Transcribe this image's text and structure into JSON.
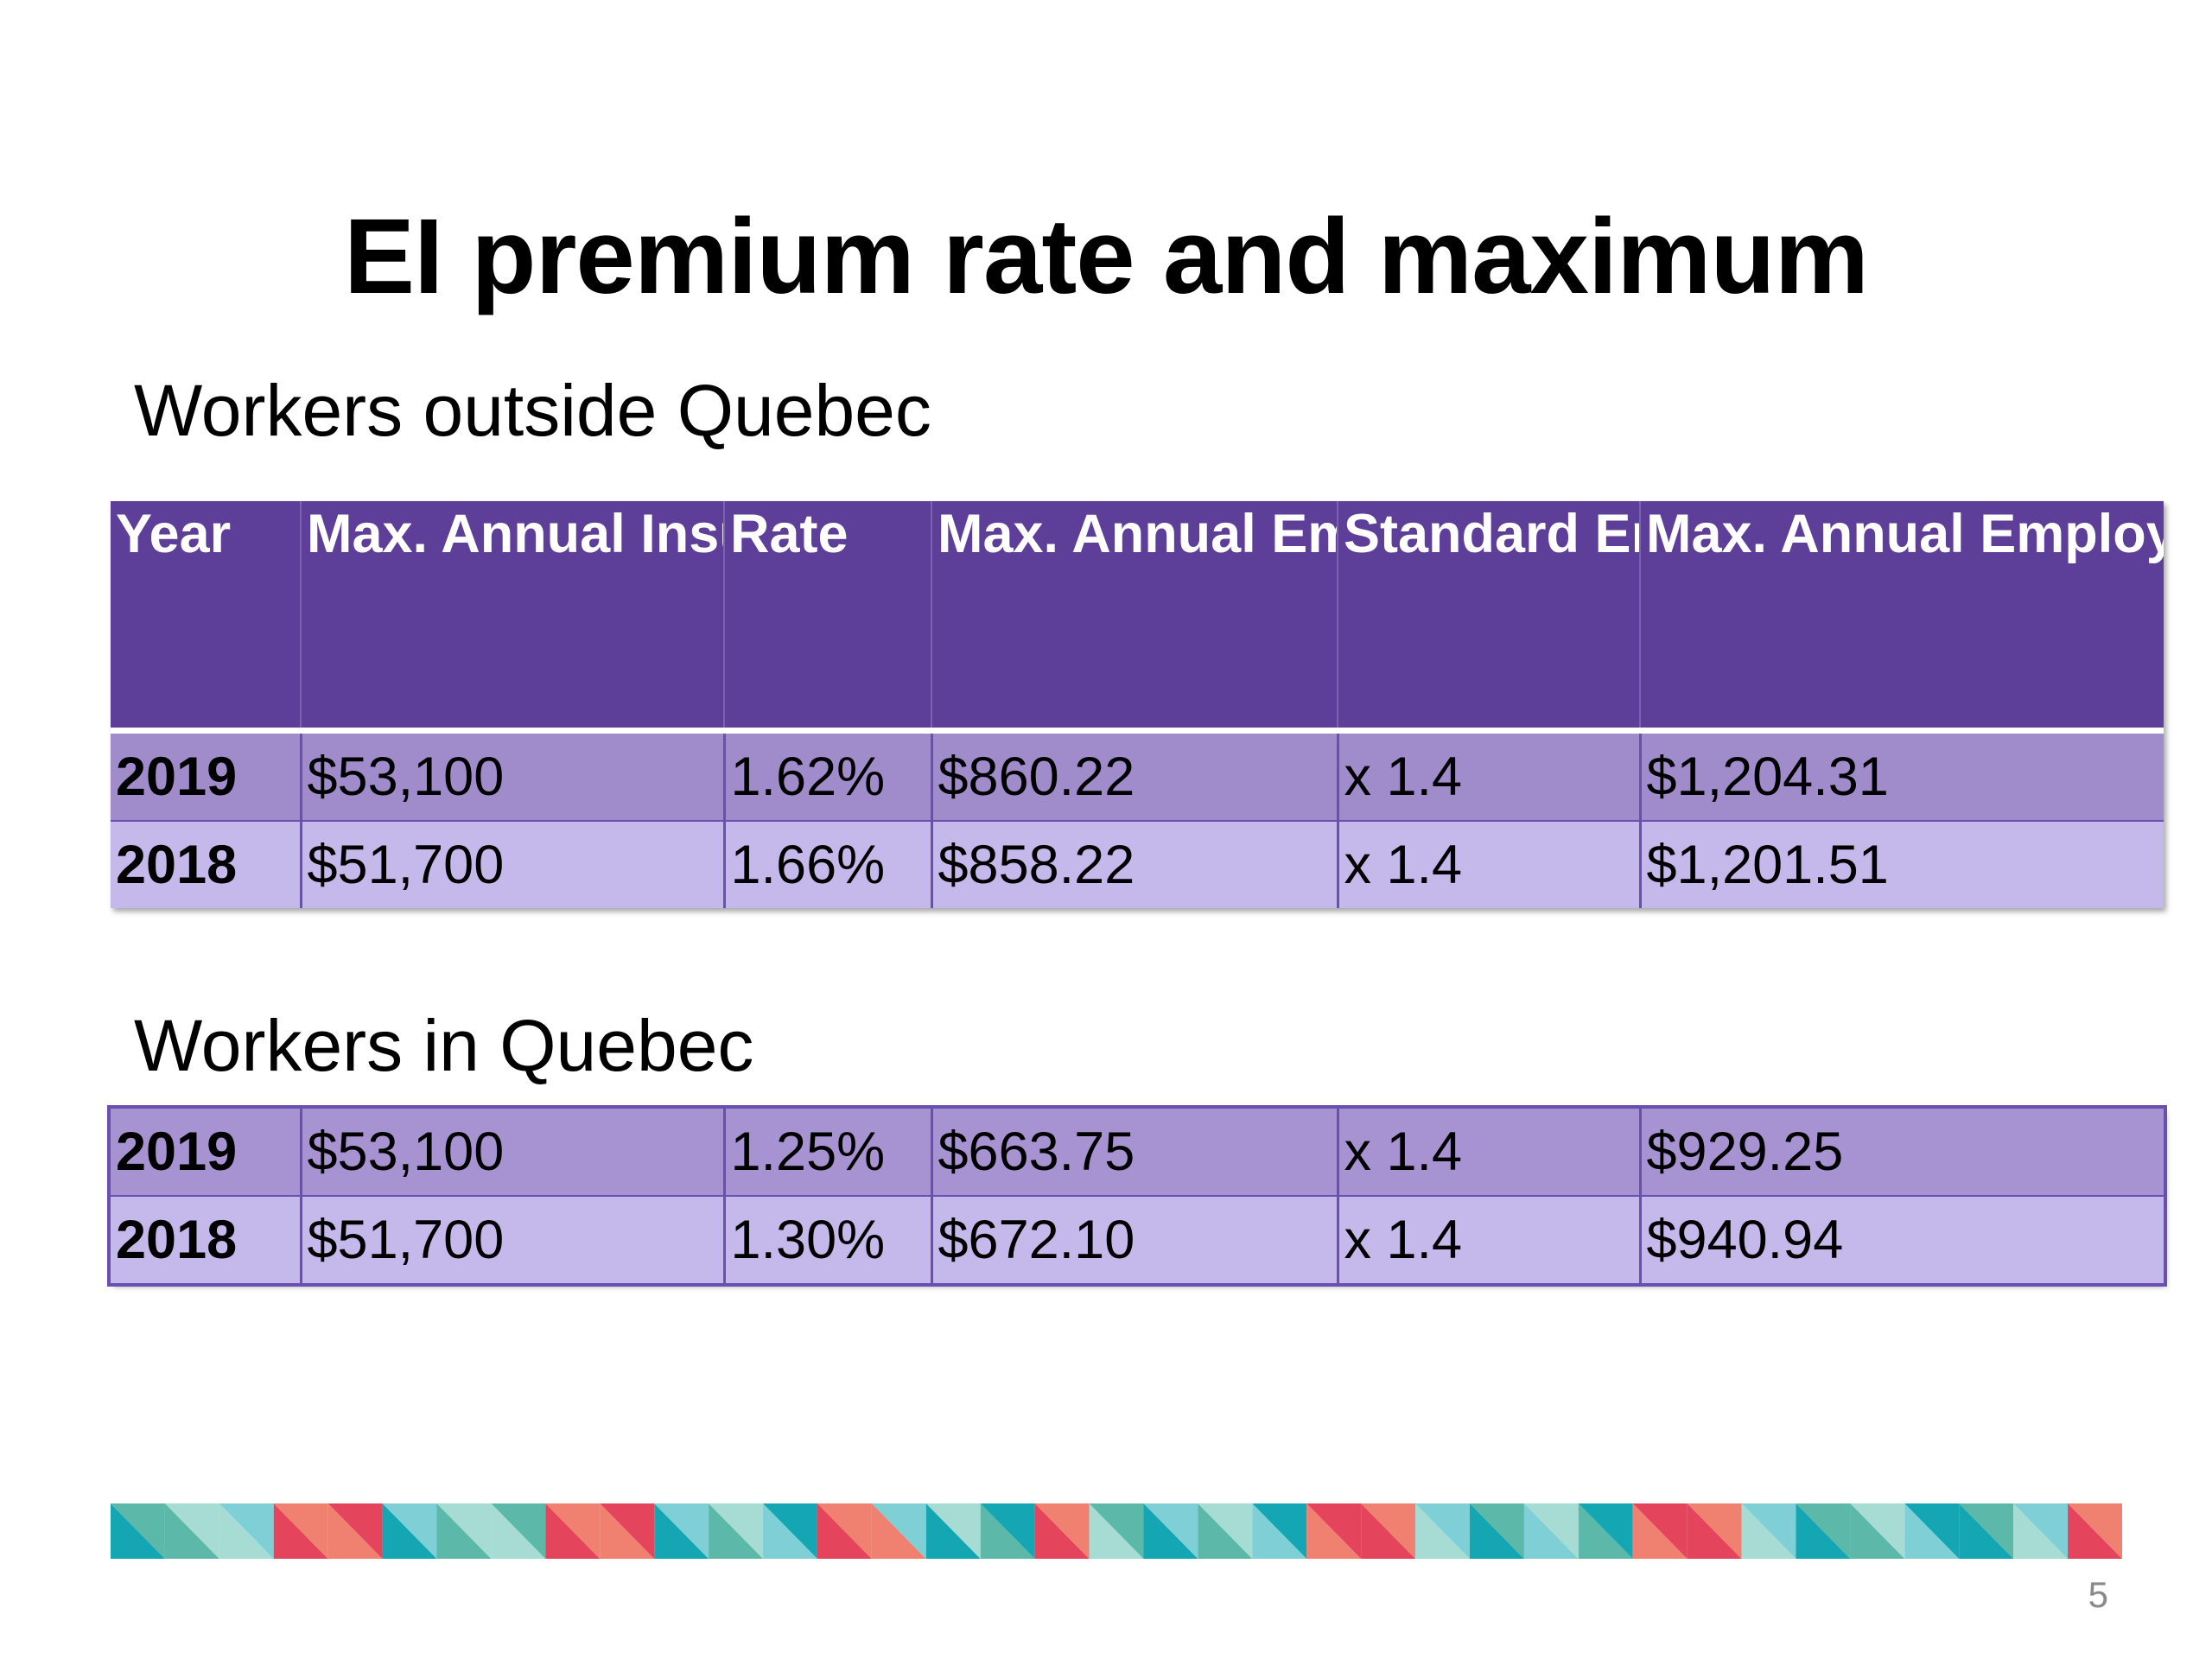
{
  "title": "EI premium rate and maximum",
  "sections": {
    "outside": {
      "label": "Workers outside Quebec"
    },
    "quebec": {
      "label": "Workers in Quebec"
    }
  },
  "headers": [
    "Year",
    "Max. Annual Insurable Earnings",
    "Rate",
    "Max. Annual Employee Premium",
    "Standard Employer Rate",
    "Max. Annual Employer Premium (per employee)"
  ],
  "outside_rows": [
    [
      "2019",
      "$53,100",
      "1.62%",
      "$860.22",
      "x 1.4",
      "$1,204.31"
    ],
    [
      "2018",
      "$51,700",
      "1.66%",
      "$858.22",
      "x 1.4",
      "$1,201.51"
    ]
  ],
  "quebec_rows": [
    [
      "2019",
      "$53,100",
      "1.25%",
      "$663.75",
      "x 1.4",
      "$929.25"
    ],
    [
      "2018",
      "$51,700",
      "1.30%",
      "$672.10",
      "x 1.4",
      "$940.94"
    ]
  ],
  "page_number": "5",
  "colors": {
    "header": "#5d3e98",
    "row_dark": "#a08ccb",
    "row_light": "#c5b8ea",
    "band": [
      "#14a6b2",
      "#5cb8a8",
      "#a6dcd4",
      "#e5455c",
      "#f08070",
      "#7fd0d6"
    ]
  }
}
